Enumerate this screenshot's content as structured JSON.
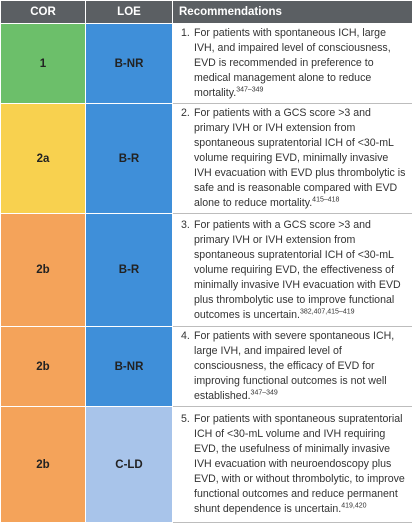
{
  "table": {
    "header": [
      "COR",
      "LOE",
      "Recommendations"
    ],
    "rows": [
      {
        "cor": "1",
        "loe": "B-NR",
        "number": "1.",
        "text": "For patients with spontaneous ICH, large IVH, and impaired level of consciousness, EVD is recommended in preference to medical management alone to reduce mortality.",
        "refs": "347–349"
      },
      {
        "cor": "2a",
        "loe": "B-R",
        "number": "2.",
        "text": "For patients with a GCS score >3 and primary IVH or IVH extension from spontaneous supratentorial ICH of <30-mL volume requiring EVD, minimally invasive IVH evacuation with EVD plus thrombolytic is safe and is reasonable compared with EVD alone to reduce mortality.",
        "refs": "415–418"
      },
      {
        "cor": "2b",
        "loe": "B-R",
        "number": "3.",
        "text": "For patients with a GCS score >3 and primary IVH or IVH extension from spontaneous supratentorial ICH of <30-mL volume requiring EVD, the effectiveness of minimally invasive IVH evacuation with EVD plus thrombolytic use to improve functional outcomes is uncertain.",
        "refs": "382,407,415–419"
      },
      {
        "cor": "2b",
        "loe": "B-NR",
        "number": "4.",
        "text": "For patients with severe spontaneous ICH, large IVH, and impaired level of consciousness, the efficacy of EVD for improving functional outcomes is not well established.",
        "refs": "347–349"
      },
      {
        "cor": "2b",
        "loe": "C-LD",
        "number": "5.",
        "text": "For patients with spontaneous supratentorial ICH of <30-mL volume and IVH requiring EVD, the usefulness of minimally invasive IVH evacuation with neuroendoscopy plus EVD, with or without thrombolytic, to improve functional outcomes and reduce permanent shunt dependence is uncertain.",
        "refs": "419,420"
      }
    ]
  }
}
